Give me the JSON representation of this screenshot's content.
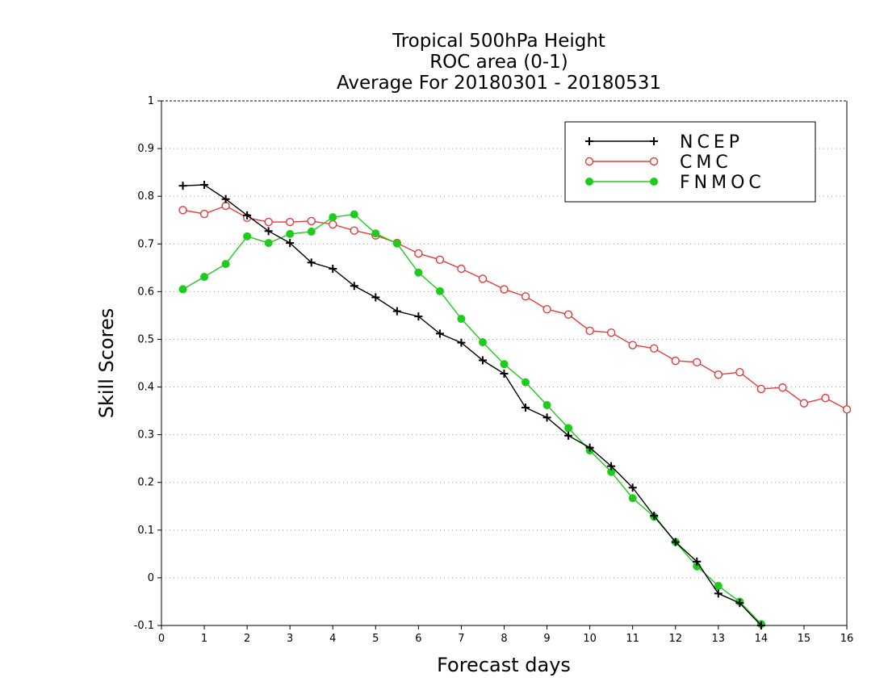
{
  "chart_data": {
    "type": "line",
    "title_lines": [
      "Tropical 500hPa Height",
      "ROC area (0-1)",
      "Average For 20180301 - 20180531"
    ],
    "xlabel": "Forecast days",
    "ylabel": "Skill Scores",
    "xlim": [
      0,
      16
    ],
    "ylim": [
      -0.1,
      1
    ],
    "x_ticks": [
      0,
      1,
      2,
      3,
      4,
      5,
      6,
      7,
      8,
      9,
      10,
      11,
      12,
      13,
      14,
      15,
      16
    ],
    "y_ticks": [
      -0.1,
      0,
      0.1,
      0.2,
      0.3,
      0.4,
      0.5,
      0.6,
      0.7,
      0.8,
      0.9,
      1
    ],
    "y_tick_labels": [
      "-0.1",
      "0",
      "0.1",
      "0.2",
      "0.3",
      "0.4",
      "0.5",
      "0.6",
      "0.7",
      "0.8",
      "0.9",
      "1"
    ],
    "grid": "horizontal dotted",
    "legend_position": "top-right",
    "series": [
      {
        "name": "NCEP",
        "color": "#000000",
        "marker": "plus",
        "x": [
          0.5,
          1,
          1.5,
          2,
          2.5,
          3,
          3.5,
          4,
          4.5,
          5,
          5.5,
          6,
          6.5,
          7,
          7.5,
          8,
          8.5,
          9,
          9.5,
          10,
          10.5,
          11,
          11.5,
          12,
          12.5,
          13,
          13.5,
          14
        ],
        "values": [
          0.822,
          0.824,
          0.794,
          0.76,
          0.727,
          0.702,
          0.661,
          0.648,
          0.612,
          0.588,
          0.559,
          0.548,
          0.512,
          0.493,
          0.456,
          0.428,
          0.357,
          0.336,
          0.298,
          0.273,
          0.234,
          0.189,
          0.13,
          0.075,
          0.034,
          -0.033,
          -0.053,
          -0.1
        ]
      },
      {
        "name": "CMC",
        "color": "#e8393c",
        "marker": "open-circle",
        "x": [
          0.5,
          1,
          1.5,
          2,
          2.5,
          3,
          3.5,
          4,
          4.5,
          5,
          5.5,
          6,
          6.5,
          7,
          7.5,
          8,
          8.5,
          9,
          9.5,
          10,
          10.5,
          11,
          11.5,
          12,
          12.5,
          13,
          13.5,
          14,
          14.5,
          15,
          15.5,
          16
        ],
        "values": [
          0.771,
          0.763,
          0.78,
          0.755,
          0.746,
          0.746,
          0.748,
          0.741,
          0.728,
          0.718,
          0.702,
          0.68,
          0.667,
          0.648,
          0.627,
          0.605,
          0.59,
          0.563,
          0.552,
          0.518,
          0.514,
          0.488,
          0.481,
          0.455,
          0.452,
          0.426,
          0.431,
          0.396,
          0.399,
          0.366,
          0.377,
          0.353
        ]
      },
      {
        "name": "FNMOC",
        "color": "#1dcc1d",
        "marker": "filled-circle",
        "x": [
          0.5,
          1,
          1.5,
          2,
          2.5,
          3,
          3.5,
          4,
          4.5,
          5,
          5.5,
          6,
          6.5,
          7,
          7.5,
          8,
          8.5,
          9,
          9.5,
          10,
          10.5,
          11,
          11.5,
          12,
          12.5,
          13,
          13.5,
          14
        ],
        "values": [
          0.605,
          0.631,
          0.658,
          0.716,
          0.702,
          0.721,
          0.726,
          0.756,
          0.762,
          0.722,
          0.701,
          0.64,
          0.601,
          0.543,
          0.494,
          0.448,
          0.41,
          0.362,
          0.314,
          0.267,
          0.222,
          0.167,
          0.128,
          0.075,
          0.024,
          -0.017,
          -0.05,
          -0.097
        ]
      }
    ]
  }
}
